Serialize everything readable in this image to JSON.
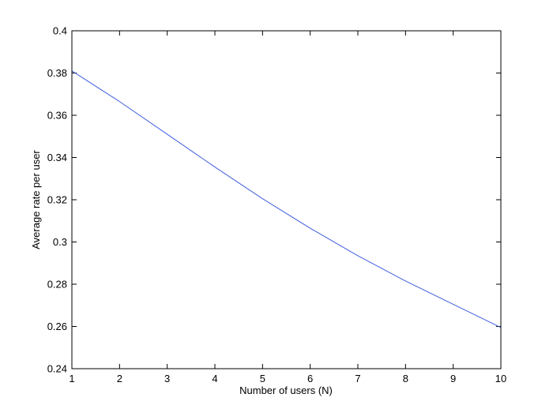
{
  "chart_data": {
    "type": "line",
    "title": "",
    "xlabel": "Number of users (N)",
    "ylabel": "Average rate per user",
    "xlim": [
      1,
      10
    ],
    "ylim": [
      0.24,
      0.4
    ],
    "xticks": [
      "1",
      "2",
      "3",
      "4",
      "5",
      "6",
      "7",
      "8",
      "9",
      "10"
    ],
    "yticks": [
      "0.24",
      "0.26",
      "0.28",
      "0.3",
      "0.32",
      "0.34",
      "0.36",
      "0.38",
      "0.4"
    ],
    "grid": false,
    "legend": "none",
    "series": [
      {
        "color": "#3f5fdf",
        "x": [
          1,
          2,
          3,
          4,
          5,
          6,
          7,
          8,
          9,
          10
        ],
        "y": [
          0.381,
          0.3665,
          0.351,
          0.3355,
          0.3205,
          0.3065,
          0.2935,
          0.2815,
          0.2705,
          0.2595
        ]
      }
    ]
  }
}
